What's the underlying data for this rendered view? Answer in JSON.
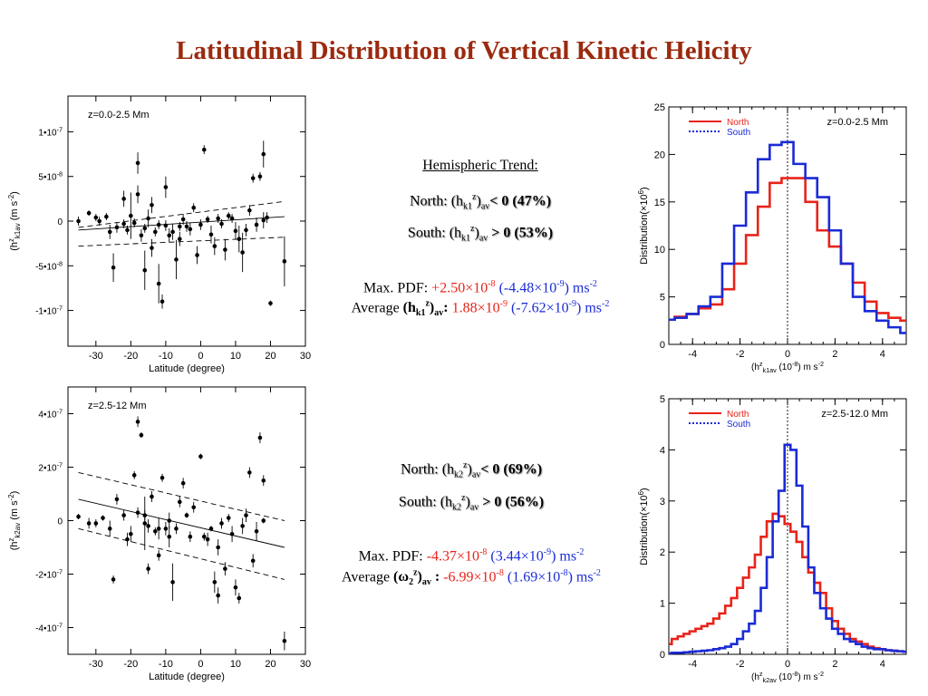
{
  "title": "Latitudinal Distribution of Vertical Kinetic Helicity",
  "panel1": {
    "hemi_title": "Hemispheric Trend:",
    "north": {
      "pre": "North: (h",
      "sub": "k1",
      "sup": "z",
      "post": ")",
      "sub2": "av",
      "rel": "< 0  (47%)"
    },
    "south": {
      "pre": "South: (h",
      "sub": "k1",
      "sup": "z",
      "post": ")",
      "sub2": "av",
      "rel": " > 0  (53%)"
    },
    "maxpdf": {
      "label": "Max. PDF:  ",
      "north_val": "+2.50×10",
      "north_exp": "-8",
      "south_val": " (-4.48×10",
      "south_exp": "-9",
      "unit": ") ms",
      "unit_exp": "-2"
    },
    "average": {
      "label": "Average ",
      "sym": "(h",
      "sym_sub": "k1",
      "sym_sup": "z",
      "sym_close": ")",
      "sym_sub2": "av",
      "colon": ": ",
      "north_val": "1.88×10",
      "north_exp": "-9",
      "south_val": " (-7.62×10",
      "south_exp": "-9",
      "unit": ") ms",
      "unit_exp": "-2"
    }
  },
  "panel2": {
    "north": {
      "pre": "North: (h",
      "sub": "k2",
      "sup": "z",
      "post": ")",
      "sub2": "av",
      "rel": "< 0  (69%)"
    },
    "south": {
      "pre": "South: (h",
      "sub": "k2",
      "sup": "z",
      "post": ")",
      "sub2": "av",
      "rel": " > 0  (56%)"
    },
    "maxpdf": {
      "label": "Max. PDF:  ",
      "north_val": "-4.37×10",
      "north_exp": "-8",
      "south_val": " (3.44×10",
      "south_exp": "-9",
      "unit": ") ms",
      "unit_exp": "-2"
    },
    "average": {
      "label": "Average ",
      "sym": "(ω",
      "sym_sub": "2",
      "sym_sup": "z",
      "sym_close": ")",
      "sym_sub2": "av",
      "colon": " : ",
      "north_val": "-6.99×10",
      "north_exp": "-8",
      "south_val": " (1.69×10",
      "south_exp": "-8",
      "unit": ") ms",
      "unit_exp": "-2"
    }
  },
  "colors": {
    "title": "#9b2a0e",
    "north": "#e8231a",
    "south": "#1a2bd6"
  },
  "chart_data": [
    {
      "type": "scatter",
      "annotation": "z=0.0-2.5 Mm",
      "xlabel": "Latitude (degree)",
      "ylabel": "(h",
      "ylabel_sup": "z",
      "ylabel_sub": "k1",
      "ylabel_sub2": "av",
      "ylabel_unit": " (m s",
      "ylabel_unit_exp": "-2",
      "ylabel_close": ")",
      "xlim": [
        -38,
        30
      ],
      "ylim": [
        -1.4e-07,
        1.4e-07
      ],
      "xticks": [
        -30,
        -20,
        -10,
        0,
        10,
        20,
        30
      ],
      "xtick_labels": [
        "-30",
        "-20",
        "-10",
        "0",
        "10",
        "20",
        "30"
      ],
      "yticks": [
        -1e-07,
        -5e-08,
        0,
        5e-08,
        1e-07
      ],
      "ytick_labels": [
        {
          "m": "-1•10",
          "e": "-7"
        },
        {
          "m": "-5•10",
          "e": "-8"
        },
        {
          "m": "0",
          "e": ""
        },
        {
          "m": "5•10",
          "e": "-8"
        },
        {
          "m": "1•10",
          "e": "-7"
        }
      ],
      "points": [
        [
          -35,
          0.0,
          5e-09
        ],
        [
          -32,
          9e-09,
          3e-09
        ],
        [
          -30,
          4e-09,
          4e-09
        ],
        [
          -29,
          0.0,
          5e-09
        ],
        [
          -27,
          5e-09,
          4e-09
        ],
        [
          -26,
          -1.2e-08,
          8e-09
        ],
        [
          -25,
          -5.2e-08,
          1.6e-08
        ],
        [
          -24,
          -7e-09,
          6e-09
        ],
        [
          -22,
          2.5e-08,
          9e-09
        ],
        [
          -22,
          -3e-09,
          5e-09
        ],
        [
          -21,
          -1e-08,
          5e-09
        ],
        [
          -20,
          6e-09,
          2.6e-08
        ],
        [
          -19,
          -2e-09,
          5e-09
        ],
        [
          -18,
          6.5e-08,
          1.2e-08
        ],
        [
          -18,
          3e-08,
          1e-08
        ],
        [
          -17,
          -1.6e-08,
          7e-09
        ],
        [
          -16,
          -8e-09,
          5e-09
        ],
        [
          -16,
          -5.5e-08,
          2.2e-08
        ],
        [
          -15,
          3e-09,
          1e-08
        ],
        [
          -14,
          -3e-08,
          1e-08
        ],
        [
          -14,
          1.8e-08,
          9e-09
        ],
        [
          -13,
          -1.2e-08,
          5e-09
        ],
        [
          -12,
          -4e-09,
          5e-09
        ],
        [
          -12,
          -7e-08,
          2.2e-08
        ],
        [
          -11,
          -9e-08,
          8e-09
        ],
        [
          -10,
          3.8e-08,
          1.2e-08
        ],
        [
          -10,
          -5e-09,
          6e-09
        ],
        [
          -9,
          -1.6e-08,
          8e-09
        ],
        [
          -8,
          -1.2e-08,
          9e-09
        ],
        [
          -7,
          -4.3e-08,
          2.2e-08
        ],
        [
          -6,
          -6e-09,
          5e-09
        ],
        [
          -6,
          -2e-08,
          8e-09
        ],
        [
          -5,
          2e-09,
          6e-09
        ],
        [
          -4,
          -6e-09,
          6e-09
        ],
        [
          -3,
          -9e-09,
          7e-09
        ],
        [
          -2,
          1.5e-08,
          5e-09
        ],
        [
          -1,
          -3.8e-08,
          1e-08
        ],
        [
          0,
          -4e-09,
          6e-09
        ],
        [
          1,
          8e-08,
          5e-09
        ],
        [
          2,
          2e-09,
          4e-09
        ],
        [
          3,
          -1.5e-08,
          1e-08
        ],
        [
          4,
          -2.8e-08,
          1e-08
        ],
        [
          5,
          3e-09,
          5e-09
        ],
        [
          6,
          -3e-09,
          5e-09
        ],
        [
          7,
          -3.2e-08,
          1.2e-08
        ],
        [
          8,
          6e-09,
          4e-09
        ],
        [
          9,
          3e-09,
          5e-09
        ],
        [
          10,
          -1.1e-08,
          1e-08
        ],
        [
          11,
          -2e-08,
          1.5e-08
        ],
        [
          12,
          -3.5e-08,
          2.2e-08
        ],
        [
          13,
          -1e-08,
          7e-09
        ],
        [
          14,
          1.2e-08,
          6e-09
        ],
        [
          15,
          4.8e-08,
          5e-09
        ],
        [
          16,
          -4e-09,
          8e-09
        ],
        [
          17,
          5e-08,
          5e-09
        ],
        [
          18,
          7.5e-08,
          1.5e-08
        ],
        [
          18,
          1e-09,
          9e-09
        ],
        [
          19,
          4e-09,
          6e-09
        ],
        [
          20,
          -9.2e-08,
          3e-09
        ],
        [
          24,
          -4.5e-08,
          2.8e-08
        ]
      ],
      "fit_line": [
        [
          -35,
          -1e-08
        ],
        [
          24,
          5e-09
        ]
      ],
      "fit_upper": [
        [
          -35,
          -7e-09
        ],
        [
          24,
          2.2e-08
        ]
      ],
      "fit_lower": [
        [
          -35,
          -2.8e-08
        ],
        [
          24,
          -1.8e-08
        ]
      ]
    },
    {
      "type": "scatter",
      "annotation": "z=2.5-12 Mm",
      "xlabel": "Latitude (degree)",
      "ylabel": "(h",
      "ylabel_sup": "z",
      "ylabel_sub": "k2",
      "ylabel_sub2": "av",
      "ylabel_unit": " (m s",
      "ylabel_unit_exp": "-2",
      "ylabel_close": ")",
      "xlim": [
        -38,
        30
      ],
      "ylim": [
        -5e-07,
        5e-07
      ],
      "xticks": [
        -30,
        -20,
        -10,
        0,
        10,
        20,
        30
      ],
      "xtick_labels": [
        "-30",
        "-20",
        "-10",
        "0",
        "10",
        "20",
        "30"
      ],
      "yticks": [
        -4e-07,
        -2e-07,
        0,
        2e-07,
        4e-07
      ],
      "ytick_labels": [
        {
          "m": "-4•10",
          "e": "-7"
        },
        {
          "m": "-2•10",
          "e": "-7"
        },
        {
          "m": "0",
          "e": ""
        },
        {
          "m": "2•10",
          "e": "-7"
        },
        {
          "m": "4•10",
          "e": "-7"
        }
      ],
      "points": [
        [
          -35,
          1.5e-08,
          1e-08
        ],
        [
          -32,
          -1e-08,
          2e-08
        ],
        [
          -30,
          -1e-08,
          1.5e-08
        ],
        [
          -28,
          1e-08,
          1e-08
        ],
        [
          -26,
          -3e-08,
          3e-08
        ],
        [
          -25,
          -2.2e-07,
          1.5e-08
        ],
        [
          -24,
          8e-08,
          2e-08
        ],
        [
          -22,
          2e-08,
          2e-08
        ],
        [
          -21,
          -7e-08,
          2.5e-08
        ],
        [
          -20,
          -5e-08,
          3e-08
        ],
        [
          -19,
          1.7e-07,
          1.5e-08
        ],
        [
          -18,
          3e-08,
          2e-08
        ],
        [
          -18,
          3.7e-07,
          2e-08
        ],
        [
          -17,
          3.2e-07,
          1e-08
        ],
        [
          -16,
          2e-08,
          2e-08
        ],
        [
          -16,
          -1e-08,
          1e-07
        ],
        [
          -15,
          -1.8e-07,
          2e-08
        ],
        [
          -15,
          -2e-08,
          2.5e-08
        ],
        [
          -14,
          9e-08,
          2e-08
        ],
        [
          -13,
          -4e-08,
          1.5e-08
        ],
        [
          -12,
          -3e-08,
          4e-08
        ],
        [
          -12,
          -1.3e-07,
          2e-08
        ],
        [
          -11,
          1.6e-07,
          1.5e-08
        ],
        [
          -10,
          -3e-08,
          2.5e-08
        ],
        [
          -9,
          0.0,
          3e-08
        ],
        [
          -9,
          -6e-08,
          4e-08
        ],
        [
          -8,
          -2.3e-07,
          7e-08
        ],
        [
          -7,
          -3e-08,
          2e-08
        ],
        [
          -6,
          7e-08,
          2e-08
        ],
        [
          -5,
          1.4e-07,
          2e-08
        ],
        [
          -4,
          2e-08,
          1e-08
        ],
        [
          -3,
          -6e-08,
          2e-08
        ],
        [
          -2,
          5e-08,
          2e-08
        ],
        [
          0,
          2.4e-07,
          1e-08
        ],
        [
          1,
          -6e-08,
          1.5e-08
        ],
        [
          2,
          -7e-08,
          2.5e-08
        ],
        [
          3,
          -3e-08,
          1e-08
        ],
        [
          4,
          -2.3e-07,
          4e-08
        ],
        [
          5,
          -1e-07,
          3e-08
        ],
        [
          5,
          -2.8e-07,
          3e-08
        ],
        [
          6,
          -1e-08,
          2e-08
        ],
        [
          7,
          -1.8e-07,
          2.5e-08
        ],
        [
          8,
          1e-08,
          1.5e-08
        ],
        [
          9,
          -5e-08,
          3e-08
        ],
        [
          10,
          -2.5e-07,
          3e-08
        ],
        [
          11,
          -2.9e-07,
          2e-08
        ],
        [
          12,
          -2e-08,
          3e-08
        ],
        [
          13,
          2e-08,
          2.5e-08
        ],
        [
          14,
          1.8e-07,
          2e-08
        ],
        [
          15,
          -1.5e-07,
          2.5e-08
        ],
        [
          16,
          -4e-08,
          3.5e-08
        ],
        [
          17,
          3.1e-07,
          2e-08
        ],
        [
          18,
          0.0,
          1e-08
        ],
        [
          18,
          1.5e-07,
          2e-08
        ],
        [
          24,
          -4.5e-07,
          3.5e-08
        ]
      ],
      "fit_line": [
        [
          -35,
          8e-08
        ],
        [
          24,
          -1e-07
        ]
      ],
      "fit_upper": [
        [
          -35,
          1.8e-07
        ],
        [
          24,
          0.0
        ]
      ],
      "fit_lower": [
        [
          -35,
          -3e-08
        ],
        [
          24,
          -2.2e-07
        ]
      ]
    },
    {
      "type": "line",
      "annotation": "z=0.0-2.5 Mm",
      "xlabel": "(h",
      "xlabel_sup": "z",
      "xlabel_sub": "k1",
      "xlabel_sub2": "av",
      "xlabel_unit": " (10",
      "xlabel_unit_exp": "-8",
      "xlabel_close": ")  m s",
      "xlabel_close_exp": "-2",
      "ylabel": "Distribution(×10",
      "ylabel_exp": "6",
      "ylabel_close": ")",
      "xlim": [
        -5,
        5
      ],
      "ylim": [
        0,
        25
      ],
      "xticks": [
        -4,
        -2,
        0,
        2,
        4
      ],
      "xtick_labels": [
        "-4",
        "-2",
        "0",
        "2",
        "4"
      ],
      "yticks": [
        0,
        5,
        10,
        15,
        20,
        25
      ],
      "ytick_labels": [
        "0",
        "5",
        "10",
        "15",
        "20",
        "25"
      ],
      "legend": "top-left",
      "series": [
        {
          "name": "North",
          "color": "#e8231a",
          "dash": "solid",
          "x": [
            -5,
            -4.5,
            -4,
            -3.5,
            -3,
            -2.5,
            -2,
            -1.5,
            -1,
            -0.5,
            0,
            0.5,
            1,
            1.5,
            2,
            2.5,
            3,
            3.5,
            4,
            4.5,
            5
          ],
          "values": [
            2.6,
            2.9,
            3.2,
            3.8,
            4.2,
            5.8,
            8.5,
            11.5,
            14.5,
            17.0,
            17.5,
            17.5,
            15.0,
            12.0,
            10.3,
            8.5,
            6.5,
            4.5,
            3.3,
            2.8,
            2.5
          ]
        },
        {
          "name": "South",
          "color": "#1a2bd6",
          "dash": "dot",
          "x": [
            -5,
            -4.5,
            -4,
            -3.5,
            -3,
            -2.5,
            -2,
            -1.5,
            -1,
            -0.5,
            0,
            0.5,
            1,
            1.5,
            2,
            2.5,
            3,
            3.5,
            4,
            4.5,
            5
          ],
          "values": [
            2.6,
            2.8,
            3.2,
            4.0,
            5.0,
            8.5,
            12.5,
            16.0,
            19.5,
            21.0,
            21.3,
            19.0,
            17.5,
            15.5,
            12.0,
            8.5,
            5.0,
            3.5,
            2.5,
            1.8,
            1.2
          ]
        }
      ]
    },
    {
      "type": "line",
      "annotation": "z=2.5-12.0 Mm",
      "xlabel": "(h",
      "xlabel_sup": "z",
      "xlabel_sub": "k2",
      "xlabel_sub2": "av",
      "xlabel_unit": " (10",
      "xlabel_unit_exp": "-8",
      "xlabel_close": ")  m s",
      "xlabel_close_exp": "-2",
      "ylabel": "Distribution(×10",
      "ylabel_exp": "6",
      "ylabel_close": ")",
      "xlim": [
        -5,
        5
      ],
      "ylim": [
        0,
        5
      ],
      "xticks": [
        -4,
        -2,
        0,
        2,
        4
      ],
      "xtick_labels": [
        "-4",
        "-2",
        "0",
        "2",
        "4"
      ],
      "yticks": [
        0,
        1,
        2,
        3,
        4,
        5
      ],
      "ytick_labels": [
        "0",
        "1",
        "2",
        "3",
        "4",
        "5"
      ],
      "legend": "top-left",
      "series": [
        {
          "name": "North",
          "color": "#e8231a",
          "dash": "solid",
          "x": [
            -5,
            -4.75,
            -4.5,
            -4.25,
            -4,
            -3.75,
            -3.5,
            -3.25,
            -3,
            -2.75,
            -2.5,
            -2.25,
            -2,
            -1.75,
            -1.5,
            -1.25,
            -1,
            -0.75,
            -0.5,
            -0.25,
            0,
            0.25,
            0.5,
            0.75,
            1,
            1.25,
            1.5,
            1.75,
            2,
            2.25,
            2.5,
            2.75,
            3,
            3.25,
            3.5,
            3.75,
            4,
            4.25,
            4.5,
            4.75,
            5
          ],
          "values": [
            0.2,
            0.3,
            0.35,
            0.4,
            0.45,
            0.5,
            0.55,
            0.6,
            0.7,
            0.8,
            0.95,
            1.1,
            1.3,
            1.5,
            1.7,
            1.95,
            2.3,
            2.6,
            2.75,
            2.7,
            2.55,
            2.4,
            2.2,
            1.9,
            1.6,
            1.4,
            1.2,
            0.9,
            0.65,
            0.5,
            0.4,
            0.3,
            0.25,
            0.2,
            0.15,
            0.12,
            0.1,
            0.08,
            0.07,
            0.06,
            0.05
          ]
        },
        {
          "name": "South",
          "color": "#1a2bd6",
          "dash": "dot",
          "x": [
            -5,
            -4.75,
            -4.5,
            -4.25,
            -4,
            -3.75,
            -3.5,
            -3.25,
            -3,
            -2.75,
            -2.5,
            -2.25,
            -2,
            -1.75,
            -1.5,
            -1.25,
            -1,
            -0.75,
            -0.5,
            -0.25,
            0,
            0.25,
            0.5,
            0.75,
            1,
            1.25,
            1.5,
            1.75,
            2,
            2.25,
            2.5,
            2.75,
            3,
            3.25,
            3.5,
            3.75,
            4,
            4.25,
            4.5,
            4.75,
            5
          ],
          "values": [
            0.02,
            0.03,
            0.03,
            0.04,
            0.05,
            0.06,
            0.07,
            0.08,
            0.1,
            0.12,
            0.15,
            0.2,
            0.3,
            0.45,
            0.6,
            0.85,
            1.3,
            1.9,
            2.6,
            3.2,
            4.1,
            4.0,
            3.3,
            2.5,
            1.7,
            1.2,
            0.9,
            0.7,
            0.5,
            0.4,
            0.3,
            0.25,
            0.2,
            0.15,
            0.12,
            0.1,
            0.1,
            0.08,
            0.07,
            0.06,
            0.05
          ]
        }
      ]
    }
  ]
}
